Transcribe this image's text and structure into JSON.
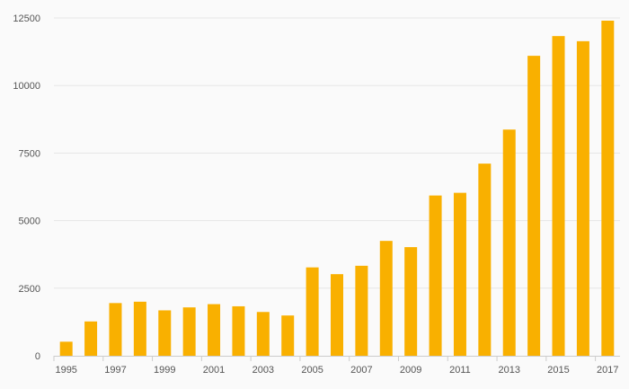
{
  "chart_data": {
    "type": "bar",
    "title": "",
    "xlabel": "",
    "ylabel": "",
    "categories": [
      "1995",
      "1996",
      "1997",
      "1998",
      "1999",
      "2000",
      "2001",
      "2002",
      "2003",
      "2004",
      "2005",
      "2006",
      "2007",
      "2008",
      "2009",
      "2010",
      "2011",
      "2012",
      "2013",
      "2014",
      "2015",
      "2016",
      "2017"
    ],
    "values": [
      520,
      1270,
      1950,
      2000,
      1680,
      1790,
      1910,
      1830,
      1620,
      1490,
      3270,
      3020,
      3330,
      4250,
      4020,
      5930,
      6030,
      7110,
      8370,
      11100,
      11830,
      11640,
      12400
    ],
    "x_tick_labels": [
      "1995",
      "1997",
      "1999",
      "2001",
      "2003",
      "2005",
      "2007",
      "2009",
      "2011",
      "2013",
      "2015",
      "2017"
    ],
    "y_ticks": [
      0,
      2500,
      5000,
      7500,
      10000,
      12500
    ],
    "y_tick_labels": [
      "0",
      "2500",
      "5000",
      "7500",
      "10000",
      "12500"
    ],
    "ylim": [
      0,
      12500
    ],
    "grid": true,
    "bar_color": "#f9b000",
    "grid_color": "#e6e6e6",
    "axis_color": "#cccccc"
  }
}
